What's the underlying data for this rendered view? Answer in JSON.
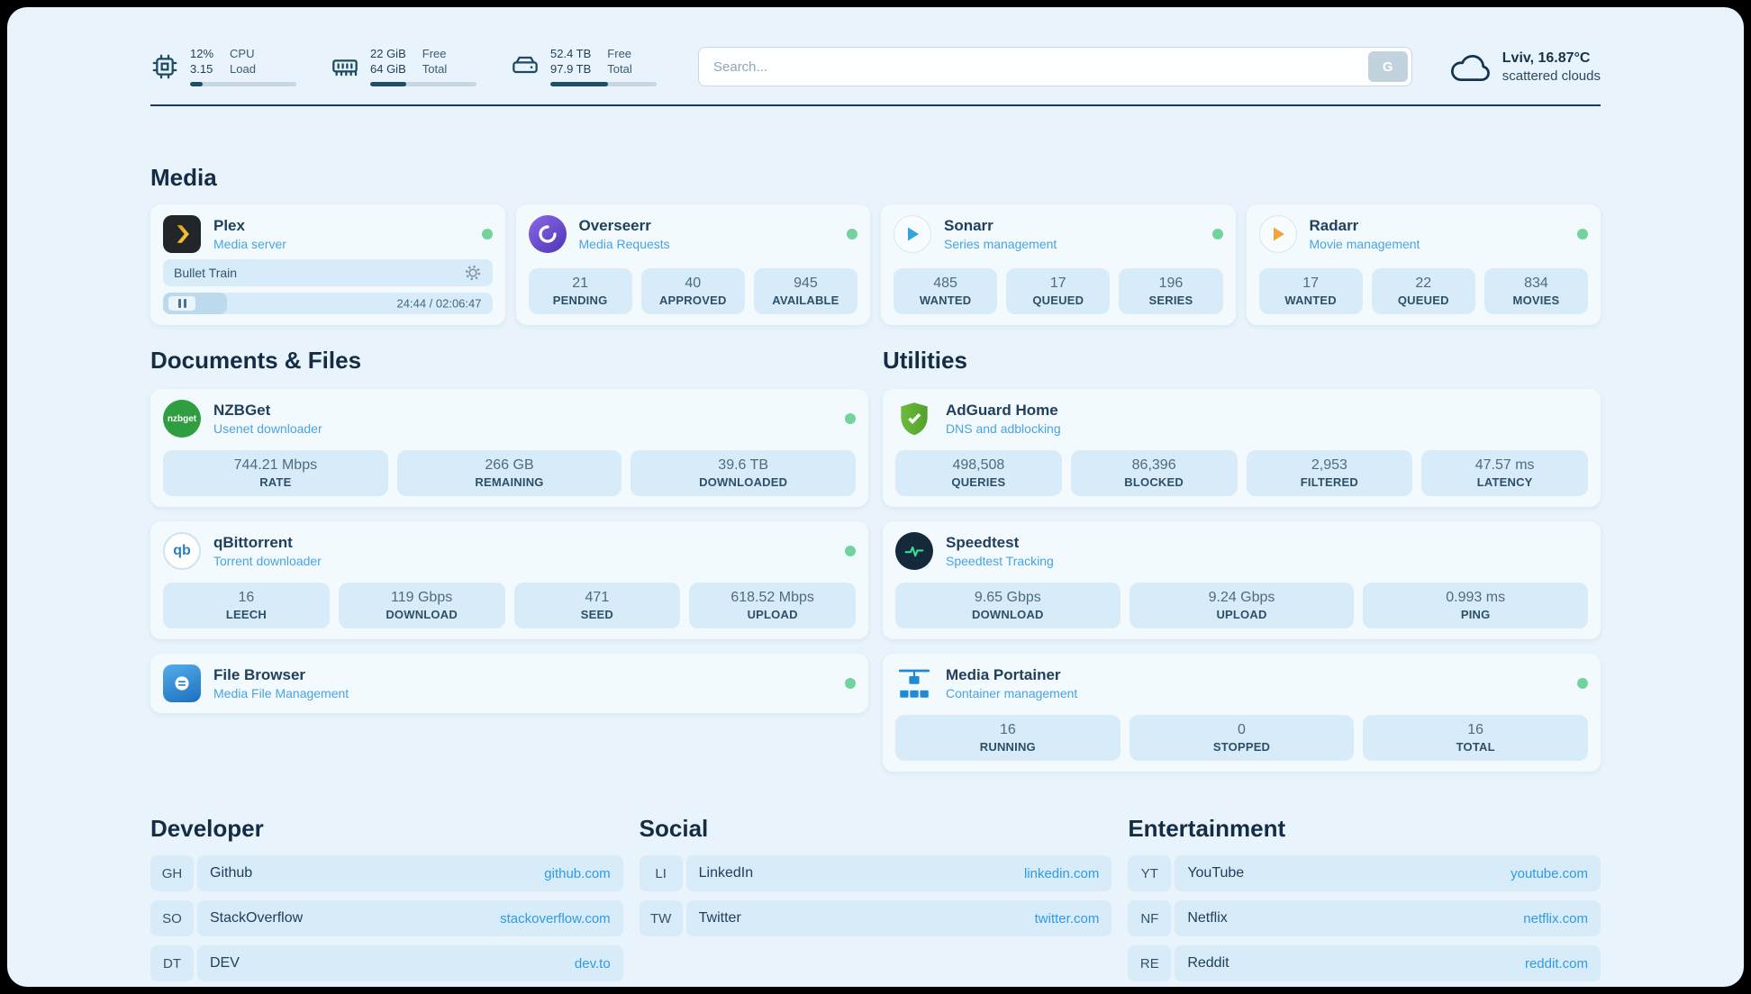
{
  "topbar": {
    "cpu": {
      "line1": "12%",
      "line2": "3.15",
      "lab1": "CPU",
      "lab2": "Load",
      "percent": 12
    },
    "ram": {
      "line1": "22 GiB",
      "line2": "64 GiB",
      "lab1": "Free",
      "lab2": "Total",
      "percent": 34
    },
    "disk": {
      "line1": "52.4 TB",
      "line2": "97.9 TB",
      "lab1": "Free",
      "lab2": "Total",
      "percent": 54
    },
    "search": {
      "placeholder": "Search...",
      "button": "G"
    },
    "weather": {
      "location": "Lviv, 16.87°C",
      "condition": "scattered clouds"
    }
  },
  "media": {
    "title": "Media",
    "plex": {
      "name": "Plex",
      "subtitle": "Media server",
      "now_playing": "Bullet Train",
      "time": "24:44 / 02:06:47",
      "progress": 19.5
    },
    "overseerr": {
      "name": "Overseerr",
      "subtitle": "Media Requests",
      "stats": [
        {
          "v": "21",
          "l": "PENDING"
        },
        {
          "v": "40",
          "l": "APPROVED"
        },
        {
          "v": "945",
          "l": "AVAILABLE"
        }
      ]
    },
    "sonarr": {
      "name": "Sonarr",
      "subtitle": "Series management",
      "stats": [
        {
          "v": "485",
          "l": "WANTED"
        },
        {
          "v": "17",
          "l": "QUEUED"
        },
        {
          "v": "196",
          "l": "SERIES"
        }
      ]
    },
    "radarr": {
      "name": "Radarr",
      "subtitle": "Movie management",
      "stats": [
        {
          "v": "17",
          "l": "WANTED"
        },
        {
          "v": "22",
          "l": "QUEUED"
        },
        {
          "v": "834",
          "l": "MOVIES"
        }
      ]
    }
  },
  "documents": {
    "title": "Documents & Files",
    "nzbget": {
      "name": "NZBGet",
      "subtitle": "Usenet downloader",
      "icon_text": "nzbget",
      "stats": [
        {
          "v": "744.21 Mbps",
          "l": "RATE"
        },
        {
          "v": "266 GB",
          "l": "REMAINING"
        },
        {
          "v": "39.6 TB",
          "l": "DOWNLOADED"
        }
      ]
    },
    "qbittorrent": {
      "name": "qBittorrent",
      "subtitle": "Torrent downloader",
      "icon_text": "qb",
      "stats": [
        {
          "v": "16",
          "l": "LEECH"
        },
        {
          "v": "119 Gbps",
          "l": "DOWNLOAD"
        },
        {
          "v": "471",
          "l": "SEED"
        },
        {
          "v": "618.52 Mbps",
          "l": "UPLOAD"
        }
      ]
    },
    "filebrowser": {
      "name": "File Browser",
      "subtitle": "Media File Management"
    }
  },
  "utilities": {
    "title": "Utilities",
    "adguard": {
      "name": "AdGuard Home",
      "subtitle": "DNS and adblocking",
      "stats": [
        {
          "v": "498,508",
          "l": "QUERIES"
        },
        {
          "v": "86,396",
          "l": "BLOCKED"
        },
        {
          "v": "2,953",
          "l": "FILTERED"
        },
        {
          "v": "47.57 ms",
          "l": "LATENCY"
        }
      ]
    },
    "speedtest": {
      "name": "Speedtest",
      "subtitle": "Speedtest Tracking",
      "stats": [
        {
          "v": "9.65 Gbps",
          "l": "DOWNLOAD"
        },
        {
          "v": "9.24 Gbps",
          "l": "UPLOAD"
        },
        {
          "v": "0.993 ms",
          "l": "PING"
        }
      ]
    },
    "portainer": {
      "name": "Media Portainer",
      "subtitle": "Container management",
      "stats": [
        {
          "v": "16",
          "l": "RUNNING"
        },
        {
          "v": "0",
          "l": "STOPPED"
        },
        {
          "v": "16",
          "l": "TOTAL"
        }
      ]
    }
  },
  "bookmarks": {
    "developer": {
      "title": "Developer",
      "items": [
        {
          "abbr": "GH",
          "name": "Github",
          "url": "github.com"
        },
        {
          "abbr": "SO",
          "name": "StackOverflow",
          "url": "stackoverflow.com"
        },
        {
          "abbr": "DT",
          "name": "DEV",
          "url": "dev.to"
        }
      ]
    },
    "social": {
      "title": "Social",
      "items": [
        {
          "abbr": "LI",
          "name": "LinkedIn",
          "url": "linkedin.com"
        },
        {
          "abbr": "TW",
          "name": "Twitter",
          "url": "twitter.com"
        }
      ]
    },
    "entertainment": {
      "title": "Entertainment",
      "items": [
        {
          "abbr": "YT",
          "name": "YouTube",
          "url": "youtube.com"
        },
        {
          "abbr": "NF",
          "name": "Netflix",
          "url": "netflix.com"
        },
        {
          "abbr": "RE",
          "name": "Reddit",
          "url": "reddit.com"
        }
      ]
    }
  },
  "colors": {
    "status_green": "#72d39c",
    "link_blue": "#2e9be5",
    "subtitle_blue": "#49a3e0",
    "bar_fill": "#1d4e66",
    "background": "#e8f3fb"
  }
}
